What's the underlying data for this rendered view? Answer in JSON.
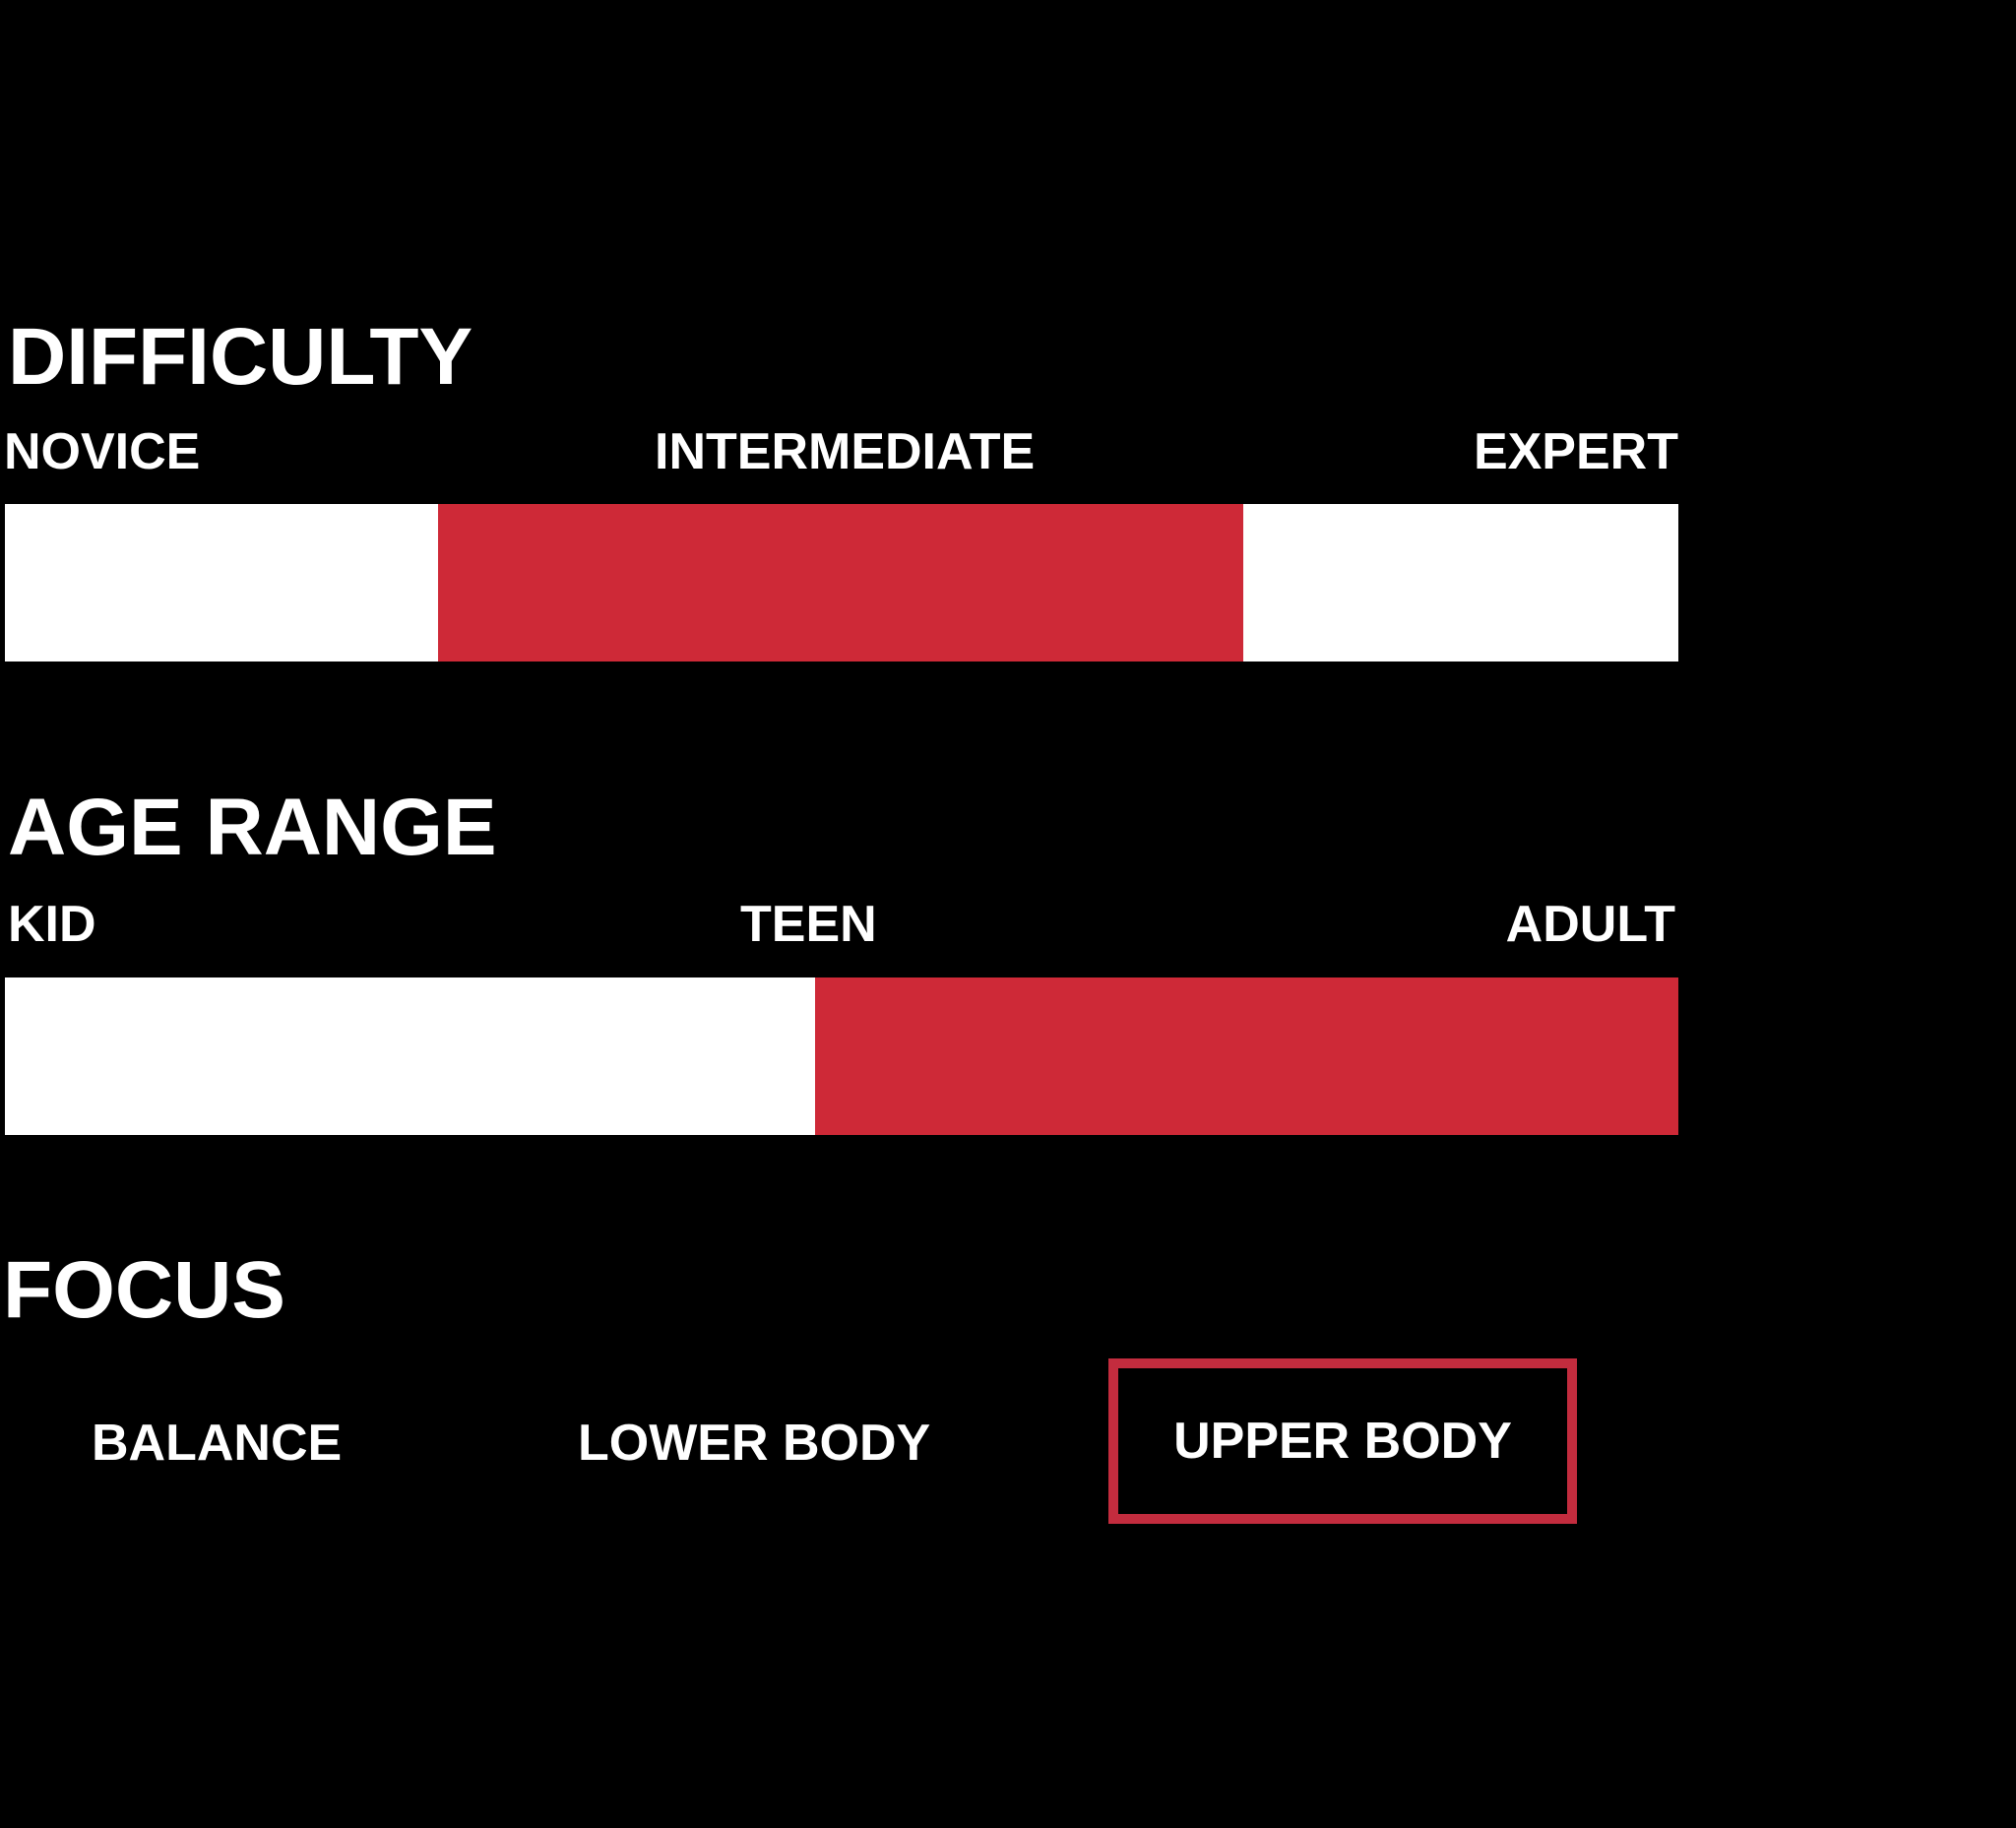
{
  "page": {
    "background_color": "#000000",
    "text_color": "#FFFFFF"
  },
  "colors": {
    "accent_red": "#CE2937",
    "focus_box_red": "#C32C3E",
    "inactive_segment_white": "#FFFFFF"
  },
  "chart_data": [
    {
      "type": "bar",
      "title": "DIFFICULTY",
      "categories": [
        "NOVICE",
        "INTERMEDIATE",
        "EXPERT"
      ],
      "highlighted": "INTERMEDIATE",
      "highlight_range_pct": [
        26,
        74
      ],
      "legend_position": "above-bar",
      "grid": false
    },
    {
      "type": "bar",
      "title": "AGE RANGE",
      "categories": [
        "KID",
        "TEEN",
        "ADULT"
      ],
      "highlighted": "TEEN to ADULT",
      "highlight_range_pct": [
        48.4,
        100
      ],
      "legend_position": "above-bar",
      "grid": false
    },
    {
      "type": "table",
      "title": "FOCUS",
      "categories": [
        "BALANCE",
        "LOWER BODY",
        "UPPER BODY"
      ],
      "highlighted": "UPPER BODY"
    }
  ],
  "difficulty": {
    "heading": "DIFFICULTY",
    "labels": {
      "left": "NOVICE",
      "center": "INTERMEDIATE",
      "right": "EXPERT"
    },
    "selected": "INTERMEDIATE",
    "bar": {
      "segments": [
        {
          "name": "novice",
          "active": false,
          "width_pct": 25.9,
          "color": "#FFFFFF"
        },
        {
          "name": "intermediate",
          "active": true,
          "width_pct": 48.1,
          "color": "#CE2937"
        },
        {
          "name": "expert",
          "active": false,
          "width_pct": 26.0,
          "color": "#FFFFFF"
        }
      ]
    }
  },
  "age_range": {
    "heading": "AGE RANGE",
    "labels": {
      "left": "KID",
      "center": "TEEN",
      "right": "ADULT"
    },
    "selected": "TEEN to ADULT",
    "bar": {
      "segments": [
        {
          "name": "kid",
          "active": false,
          "width_pct": 48.4,
          "color": "#FFFFFF"
        },
        {
          "name": "teen-adult",
          "active": true,
          "width_pct": 51.6,
          "color": "#CE2937"
        }
      ]
    }
  },
  "focus": {
    "heading": "FOCUS",
    "options": [
      {
        "label": "BALANCE",
        "selected": false
      },
      {
        "label": "LOWER BODY",
        "selected": false
      },
      {
        "label": "UPPER BODY",
        "selected": true
      }
    ],
    "selected": "UPPER BODY",
    "box_border_color": "#C32C3E"
  }
}
